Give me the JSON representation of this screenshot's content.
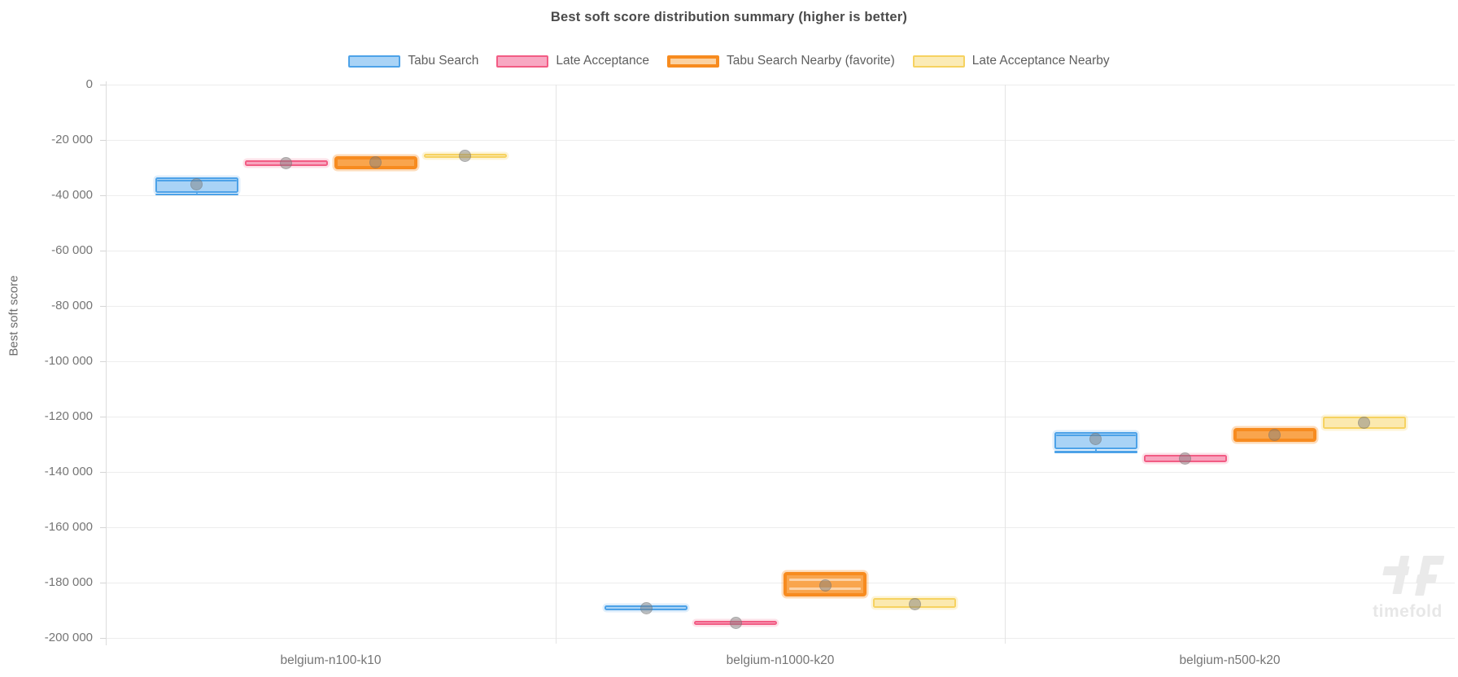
{
  "watermark": {
    "text": "timefold"
  },
  "chart_data": {
    "type": "boxplot",
    "title": "Best soft score distribution summary (higher is better)",
    "ylabel": "Best soft score",
    "ylim": [
      -200000,
      0
    ],
    "ytick_step": 20000,
    "ytick_labels": [
      "0",
      "-20 000",
      "-40 000",
      "-60 000",
      "-80 000",
      "-100 000",
      "-120 000",
      "-140 000",
      "-160 000",
      "-180 000",
      "-200 000"
    ],
    "grid": true,
    "legend_position": "top",
    "categories": [
      "belgium-n100-k10",
      "belgium-n1000-k20",
      "belgium-n500-k20"
    ],
    "series": [
      {
        "name": "Tabu Search",
        "fill": "#A9D3F6",
        "border": "#4DA2E8",
        "legend_fill": "#A9D3F6",
        "halo": "rgba(77,162,232,0.18)",
        "favorite": false,
        "boxes": [
          {
            "high": -33600,
            "low": -39000,
            "median": -34600,
            "mean": -35900,
            "whisker_low": -39600
          },
          {
            "high": -188300,
            "low": -190000,
            "mean": -189200
          },
          {
            "high": -125600,
            "low": -131700,
            "median": -126700,
            "mean": -128000,
            "whisker_low": -132700
          }
        ]
      },
      {
        "name": "Late Acceptance",
        "fill": "#F8A4BE",
        "border": "#F25C84",
        "legend_fill": "#F8A8C2",
        "halo": "rgba(242,92,132,0.18)",
        "favorite": false,
        "boxes": [
          {
            "high": -27300,
            "low": -29500,
            "mean": -28400
          },
          {
            "high": -193700,
            "low": -195400,
            "mean": -194600
          },
          {
            "high": -133900,
            "low": -136600,
            "mean": -135200
          }
        ]
      },
      {
        "name": "Tabu Search Nearby (favorite)",
        "fill": "#F9A54D",
        "border": "#F78B1F",
        "legend_fill": "#FBD2A2",
        "halo": "rgba(247,139,31,0.30)",
        "favorite": true,
        "boxes": [
          {
            "high": -26000,
            "low": -30500,
            "mean": -28000
          },
          {
            "high": -176100,
            "low": -184900,
            "mean": -180900,
            "inner_lines": [
              -179000,
              -182100
            ]
          },
          {
            "high": -124100,
            "low": -129000,
            "mean": -126500
          }
        ]
      },
      {
        "name": "Late Acceptance Nearby",
        "fill": "#FBE9AF",
        "border": "#F6D260",
        "legend_fill": "#FBEBB6",
        "halo": "rgba(246,210,96,0.25)",
        "favorite": false,
        "boxes": [
          {
            "high": -25100,
            "low": -26600,
            "mean": -25800
          },
          {
            "high": -185600,
            "low": -189200,
            "mean": -187900
          },
          {
            "high": -119900,
            "low": -124500,
            "mean": -122100
          }
        ]
      }
    ]
  }
}
